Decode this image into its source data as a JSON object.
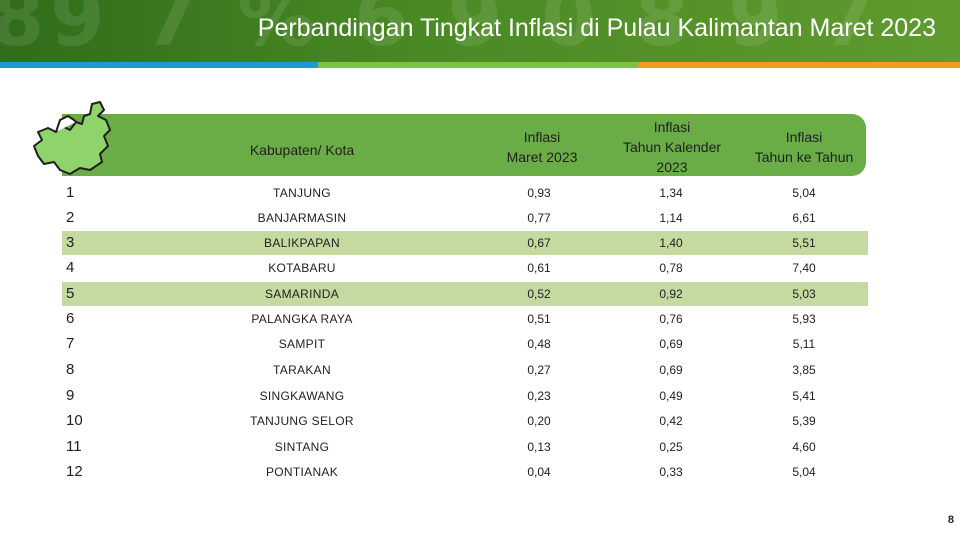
{
  "title": "Perbandingan Tingkat Inflasi di Pulau Kalimantan Maret 2023",
  "colors": {
    "banner": "#3f7f20",
    "header_fill": "#6aad47",
    "highlight_row": "#c4daa0",
    "stripe_blue": "#1c9ad6",
    "stripe_green": "#7cc242",
    "stripe_orange": "#f29a1f"
  },
  "icon": "kalimantan-map-icon",
  "table": {
    "headers": {
      "kabupaten": "Kabupaten/ Kota",
      "col1": [
        "Inflasi",
        "Maret 2023"
      ],
      "col2": [
        "Inflasi",
        "Tahun Kalender",
        "2023"
      ],
      "col3": [
        "Inflasi",
        "Tahun ke Tahun"
      ]
    },
    "rows": [
      {
        "no": "1",
        "name": "TANJUNG",
        "v1": "0,93",
        "v2": "1,34",
        "v3": "5,04"
      },
      {
        "no": "2",
        "name": "BANJARMASIN",
        "v1": "0,77",
        "v2": "1,14",
        "v3": "6,61"
      },
      {
        "no": "3",
        "name": "BALIKPAPAN",
        "v1": "0,67",
        "v2": "1,40",
        "v3": "5,51"
      },
      {
        "no": "4",
        "name": "KOTABARU",
        "v1": "0,61",
        "v2": "0,78",
        "v3": "7,40"
      },
      {
        "no": "5",
        "name": "SAMARINDA",
        "v1": "0,52",
        "v2": "0,92",
        "v3": "5,03"
      },
      {
        "no": "6",
        "name": "PALANGKA RAYA",
        "v1": "0,51",
        "v2": "0,76",
        "v3": "5,93"
      },
      {
        "no": "7",
        "name": "SAMPIT",
        "v1": "0,48",
        "v2": "0,69",
        "v3": "5,11"
      },
      {
        "no": "8",
        "name": "TARAKAN",
        "v1": "0,27",
        "v2": "0,69",
        "v3": "3,85"
      },
      {
        "no": "9",
        "name": "SINGKAWANG",
        "v1": "0,23",
        "v2": "0,49",
        "v3": "5,41"
      },
      {
        "no": "10",
        "name": "TANJUNG SELOR",
        "v1": "0,20",
        "v2": "0,42",
        "v3": "5,39"
      },
      {
        "no": "11",
        "name": "SINTANG",
        "v1": "0,13",
        "v2": "0,25",
        "v3": "4,60"
      },
      {
        "no": "12",
        "name": "PONTIANAK",
        "v1": "0,04",
        "v2": "0,33",
        "v3": "5,04"
      }
    ]
  },
  "page_number": "8"
}
